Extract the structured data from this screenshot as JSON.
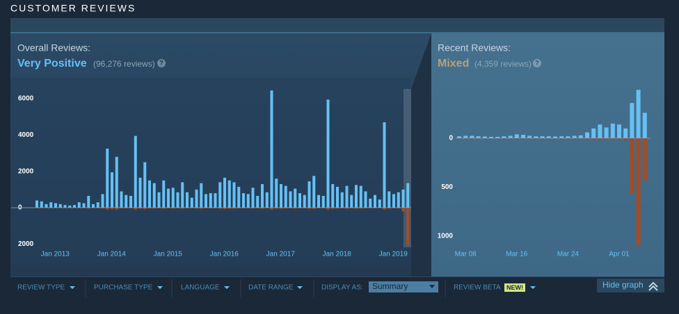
{
  "header": {
    "title": "CUSTOMER REVIEWS"
  },
  "overall": {
    "label": "Overall Reviews:",
    "rating": "Very Positive",
    "count": "(96,276 reviews)",
    "help": "?"
  },
  "recent": {
    "label": "Recent Reviews:",
    "rating": "Mixed",
    "count": "(4,359 reviews)",
    "help": "?"
  },
  "chart_data": [
    {
      "type": "bar",
      "categories": [
        null,
        null,
        null,
        "Jan 2013",
        null,
        null,
        null,
        null,
        null,
        null,
        null,
        null,
        null,
        null,
        null,
        "Jan 2014",
        null,
        null,
        null,
        null,
        null,
        null,
        null,
        null,
        null,
        null,
        null,
        "Jan 2015",
        null,
        null,
        null,
        null,
        null,
        null,
        null,
        null,
        null,
        null,
        null,
        "Jan 2016",
        null,
        null,
        null,
        null,
        null,
        null,
        null,
        null,
        null,
        null,
        null,
        "Jan 2017",
        null,
        null,
        null,
        null,
        null,
        null,
        null,
        null,
        null,
        null,
        null,
        "Jan 2018",
        null,
        null,
        null,
        null,
        null,
        null,
        null,
        null,
        null,
        null,
        null,
        "Jan 2019",
        null,
        null,
        null,
        null
      ],
      "series": [
        {
          "color": "#66c0f4",
          "values": [
            400,
            350,
            200,
            300,
            250,
            200,
            150,
            120,
            150,
            300,
            250,
            650,
            200,
            300,
            750,
            3250,
            1950,
            2800,
            900,
            700,
            650,
            3950,
            1650,
            2500,
            1500,
            1350,
            850,
            1500,
            1050,
            1100,
            850,
            1400,
            850,
            550,
            1000,
            1350,
            750,
            800,
            800,
            1400,
            1650,
            1500,
            1400,
            1150,
            800,
            750,
            1100,
            650,
            1300,
            850,
            6450,
            1600,
            1300,
            1200,
            900,
            1050,
            800,
            700,
            1450,
            1750,
            700,
            650,
            5950,
            1300,
            1150,
            850,
            1200,
            700,
            1250,
            1200,
            900,
            500,
            700,
            450,
            4700,
            900,
            750,
            850,
            1000,
            1350
          ]
        },
        {
          "color": "#a34c25",
          "values": [
            -30,
            -30,
            -20,
            -30,
            -20,
            -20,
            -20,
            -20,
            -20,
            -30,
            -30,
            -50,
            -20,
            -30,
            -50,
            -100,
            -80,
            -100,
            -40,
            -40,
            -40,
            -100,
            -60,
            -80,
            -50,
            -50,
            -40,
            -60,
            -40,
            -50,
            -40,
            -60,
            -40,
            -30,
            -50,
            -60,
            -40,
            -40,
            -40,
            -60,
            -70,
            -60,
            -60,
            -50,
            -40,
            -40,
            -50,
            -40,
            -60,
            -40,
            -100,
            -60,
            -60,
            -50,
            -40,
            -50,
            -40,
            -40,
            -60,
            -70,
            -40,
            -40,
            -100,
            -60,
            -50,
            -40,
            -60,
            -40,
            -60,
            -50,
            -40,
            -30,
            -40,
            -30,
            -100,
            -50,
            -40,
            -50,
            -200,
            -2050
          ]
        }
      ],
      "ylim": [
        -2200,
        6600
      ],
      "yticks": [
        6000,
        4000,
        2000,
        0,
        {
          "value": -2000,
          "label": "2000"
        }
      ]
    },
    {
      "type": "bar",
      "categories": [
        null,
        "Mar 08",
        null,
        null,
        null,
        null,
        null,
        null,
        null,
        "Mar 16",
        null,
        null,
        null,
        null,
        null,
        null,
        null,
        "Mar 24",
        null,
        null,
        null,
        null,
        null,
        null,
        null,
        "Apr 01",
        null,
        null,
        null,
        null
      ],
      "series": [
        {
          "color": "#66c0f4",
          "values": [
            20,
            25,
            25,
            20,
            18,
            15,
            15,
            20,
            25,
            40,
            35,
            25,
            20,
            20,
            20,
            18,
            20,
            20,
            25,
            30,
            60,
            100,
            140,
            110,
            150,
            140,
            100,
            360,
            495,
            260
          ]
        },
        {
          "color": "#a34c25",
          "values": [
            -3,
            -3,
            -3,
            -3,
            -2,
            -2,
            -2,
            -3,
            -3,
            -4,
            -4,
            -3,
            -3,
            -3,
            -3,
            -2,
            -3,
            -3,
            -3,
            -4,
            -6,
            -8,
            -10,
            -8,
            -10,
            -10,
            -20,
            -560,
            -1100,
            -430
          ]
        }
      ],
      "ylim": [
        -1110,
        525
      ],
      "yticks": [
        0,
        {
          "value": -500,
          "label": "500"
        },
        {
          "value": -1000,
          "label": "1000"
        }
      ]
    }
  ],
  "filters": {
    "items": [
      "REVIEW TYPE",
      "PURCHASE TYPE",
      "LANGUAGE",
      "DATE RANGE"
    ],
    "display_as": "DISPLAY AS:",
    "display_value": "Summary",
    "beta": "REVIEW BETA",
    "beta_badge": "NEW!",
    "hide": "Hide graph"
  }
}
